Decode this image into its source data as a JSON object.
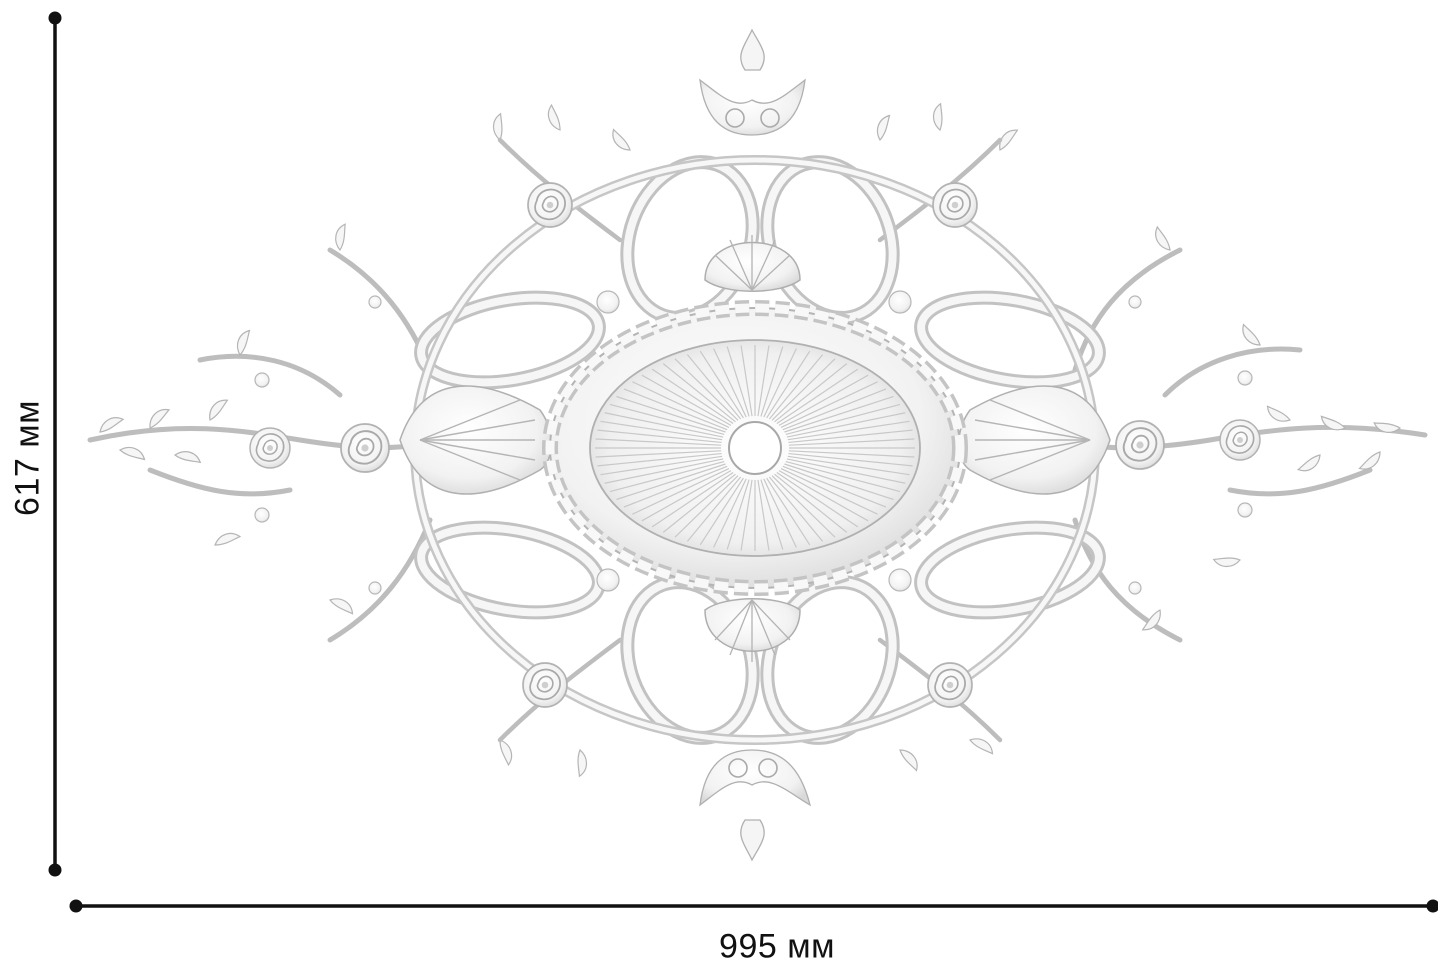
{
  "dimensions": {
    "height_label": "617 мм",
    "width_label": "995 мм"
  },
  "colors": {
    "line": "#111111",
    "ornament_fill": "#f7f7f7",
    "ornament_stroke": "#b9b9b9",
    "ornament_shadow": "#d6d6d6",
    "background": "#ffffff"
  }
}
